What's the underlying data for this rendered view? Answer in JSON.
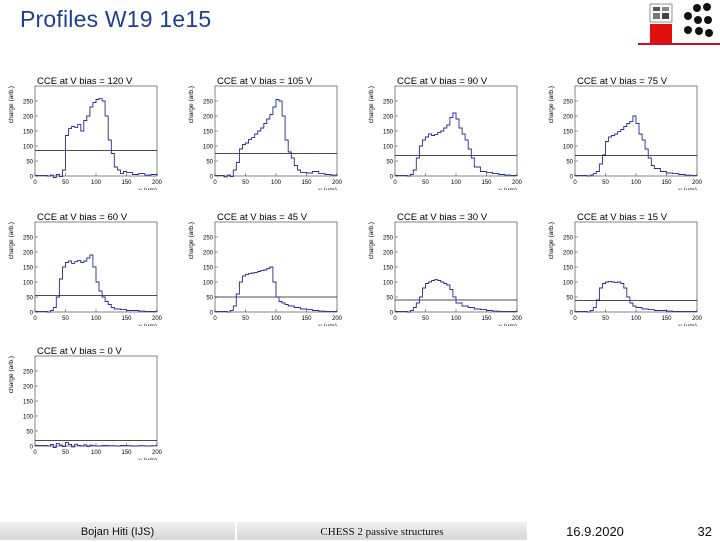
{
  "slide": {
    "title": "Profiles W19 1e15"
  },
  "footer": {
    "author": "Bojan Hiti (IJS)",
    "title": "CHESS 2 passive structures",
    "date": "16.9.2020",
    "page": "32"
  },
  "colors": {
    "title": "#1f3f8f",
    "curve": "#2a2a9a",
    "logo_red": "#e0100e"
  },
  "chart_data": [
    {
      "type": "line",
      "title": "CCE at V bias = 120 V",
      "xlabel": "y (µm)",
      "ylabel": "charge (arb.)",
      "xlim": [
        0,
        200
      ],
      "ylim": [
        0,
        300
      ],
      "xticks": [
        0,
        50,
        100,
        150,
        200
      ],
      "yticks": [
        0,
        50,
        100,
        150,
        200,
        250
      ],
      "threshold": 85,
      "series": [
        {
          "x": [
            0,
            20,
            25,
            30,
            35,
            40,
            45,
            50,
            55,
            60,
            65,
            70,
            75,
            80,
            85,
            90,
            95,
            100,
            105,
            110,
            115,
            120,
            125,
            130,
            135,
            140,
            145,
            150,
            160,
            170,
            180,
            190,
            200
          ],
          "y": [
            2,
            0,
            3,
            -5,
            5,
            -2,
            20,
            135,
            158,
            165,
            162,
            172,
            150,
            185,
            200,
            230,
            245,
            255,
            258,
            250,
            200,
            120,
            75,
            30,
            20,
            8,
            15,
            12,
            5,
            8,
            3,
            5,
            2
          ]
        }
      ]
    },
    {
      "type": "line",
      "title": "CCE at V bias = 105 V",
      "xlabel": "y (µm)",
      "ylabel": "charge (arb.)",
      "xlim": [
        0,
        200
      ],
      "ylim": [
        0,
        300
      ],
      "xticks": [
        0,
        50,
        100,
        150,
        200
      ],
      "yticks": [
        0,
        50,
        100,
        150,
        200,
        250
      ],
      "threshold": 75,
      "series": [
        {
          "x": [
            0,
            15,
            20,
            25,
            30,
            35,
            40,
            45,
            50,
            55,
            60,
            65,
            70,
            75,
            80,
            85,
            90,
            95,
            100,
            105,
            110,
            115,
            120,
            125,
            130,
            135,
            140,
            150,
            160,
            170,
            180,
            190,
            200
          ],
          "y": [
            2,
            -3,
            3,
            -2,
            20,
            45,
            90,
            105,
            110,
            122,
            128,
            140,
            150,
            160,
            175,
            190,
            205,
            230,
            255,
            250,
            200,
            120,
            80,
            60,
            35,
            20,
            12,
            10,
            15,
            8,
            5,
            3,
            2
          ]
        }
      ]
    },
    {
      "type": "line",
      "title": "CCE at V bias = 90 V",
      "xlabel": "y (µm)",
      "ylabel": "charge (arb.)",
      "xlim": [
        0,
        200
      ],
      "ylim": [
        0,
        300
      ],
      "xticks": [
        0,
        50,
        100,
        150,
        200
      ],
      "yticks": [
        0,
        50,
        100,
        150,
        200,
        250
      ],
      "threshold": 68,
      "series": [
        {
          "x": [
            0,
            20,
            25,
            30,
            35,
            40,
            45,
            50,
            55,
            60,
            65,
            70,
            75,
            80,
            85,
            90,
            95,
            100,
            105,
            110,
            115,
            120,
            125,
            130,
            140,
            150,
            160,
            170,
            180,
            190,
            200
          ],
          "y": [
            2,
            0,
            5,
            20,
            60,
            100,
            120,
            130,
            140,
            135,
            138,
            145,
            150,
            160,
            170,
            195,
            210,
            190,
            160,
            140,
            120,
            90,
            60,
            30,
            15,
            12,
            8,
            5,
            3,
            2,
            0
          ]
        }
      ]
    },
    {
      "type": "line",
      "title": "CCE at V bias = 75 V",
      "xlabel": "y (µm)",
      "ylabel": "charge (arb.)",
      "xlim": [
        0,
        200
      ],
      "ylim": [
        0,
        300
      ],
      "xticks": [
        0,
        50,
        100,
        150,
        200
      ],
      "yticks": [
        0,
        50,
        100,
        150,
        200,
        250
      ],
      "threshold": 68,
      "series": [
        {
          "x": [
            0,
            20,
            25,
            30,
            35,
            40,
            45,
            50,
            55,
            60,
            65,
            70,
            75,
            80,
            85,
            90,
            95,
            100,
            105,
            110,
            115,
            120,
            125,
            130,
            140,
            150,
            160,
            170,
            180,
            190,
            200
          ],
          "y": [
            2,
            0,
            3,
            8,
            15,
            40,
            70,
            115,
            130,
            135,
            140,
            148,
            155,
            165,
            175,
            182,
            200,
            175,
            140,
            120,
            90,
            60,
            35,
            25,
            15,
            10,
            8,
            5,
            3,
            2,
            2
          ]
        }
      ]
    },
    {
      "type": "line",
      "title": "CCE at V bias = 60 V",
      "xlabel": "y (µm)",
      "ylabel": "charge (arb.)",
      "xlim": [
        0,
        200
      ],
      "ylim": [
        0,
        300
      ],
      "xticks": [
        0,
        50,
        100,
        150,
        200
      ],
      "yticks": [
        0,
        50,
        100,
        150,
        200,
        250
      ],
      "threshold": 55,
      "series": [
        {
          "x": [
            0,
            20,
            25,
            30,
            35,
            40,
            45,
            50,
            55,
            60,
            65,
            70,
            75,
            80,
            85,
            90,
            95,
            100,
            105,
            110,
            115,
            120,
            125,
            130,
            140,
            150,
            160,
            170,
            180,
            190,
            200
          ],
          "y": [
            2,
            0,
            5,
            15,
            50,
            110,
            150,
            165,
            170,
            162,
            168,
            172,
            165,
            170,
            180,
            190,
            150,
            100,
            70,
            50,
            35,
            25,
            15,
            10,
            8,
            5,
            5,
            3,
            2,
            2,
            2
          ]
        }
      ]
    },
    {
      "type": "line",
      "title": "CCE at V bias = 45 V",
      "xlabel": "y (µm)",
      "ylabel": "charge (arb.)",
      "xlim": [
        0,
        200
      ],
      "ylim": [
        0,
        300
      ],
      "xticks": [
        0,
        50,
        100,
        150,
        200
      ],
      "yticks": [
        0,
        50,
        100,
        150,
        200,
        250
      ],
      "threshold": 50,
      "series": [
        {
          "x": [
            0,
            20,
            25,
            30,
            35,
            40,
            45,
            50,
            55,
            60,
            65,
            70,
            75,
            80,
            85,
            90,
            95,
            100,
            105,
            110,
            115,
            120,
            130,
            140,
            150,
            160,
            170,
            180,
            190,
            200
          ],
          "y": [
            2,
            0,
            5,
            20,
            60,
            100,
            120,
            125,
            128,
            130,
            132,
            135,
            138,
            140,
            145,
            150,
            100,
            50,
            35,
            30,
            25,
            20,
            15,
            10,
            8,
            5,
            3,
            2,
            2,
            2
          ]
        }
      ]
    },
    {
      "type": "line",
      "title": "CCE at V bias = 30 V",
      "xlabel": "y (µm)",
      "ylabel": "charge (arb.)",
      "xlim": [
        0,
        200
      ],
      "ylim": [
        0,
        300
      ],
      "xticks": [
        0,
        50,
        100,
        150,
        200
      ],
      "yticks": [
        0,
        50,
        100,
        150,
        200,
        250
      ],
      "threshold": 40,
      "series": [
        {
          "x": [
            0,
            20,
            25,
            30,
            35,
            40,
            45,
            50,
            55,
            60,
            65,
            70,
            75,
            80,
            85,
            90,
            95,
            100,
            110,
            120,
            130,
            140,
            150,
            160,
            170,
            180,
            190,
            200
          ],
          "y": [
            2,
            0,
            5,
            15,
            30,
            50,
            80,
            95,
            100,
            105,
            108,
            105,
            100,
            95,
            90,
            75,
            50,
            30,
            20,
            15,
            10,
            8,
            5,
            3,
            2,
            2,
            2,
            2
          ]
        }
      ]
    },
    {
      "type": "line",
      "title": "CCE at V bias = 15 V",
      "xlabel": "y (µm)",
      "ylabel": "charge (arb.)",
      "xlim": [
        0,
        200
      ],
      "ylim": [
        0,
        300
      ],
      "xticks": [
        0,
        50,
        100,
        150,
        200
      ],
      "yticks": [
        0,
        50,
        100,
        150,
        200,
        250
      ],
      "threshold": 38,
      "series": [
        {
          "x": [
            0,
            20,
            25,
            30,
            35,
            40,
            45,
            50,
            55,
            60,
            65,
            70,
            75,
            80,
            85,
            90,
            95,
            100,
            110,
            120,
            130,
            140,
            150,
            160,
            170,
            180,
            190,
            200
          ],
          "y": [
            2,
            0,
            5,
            15,
            40,
            80,
            95,
            100,
            102,
            100,
            98,
            100,
            95,
            80,
            50,
            30,
            20,
            15,
            10,
            8,
            5,
            5,
            3,
            2,
            2,
            2,
            2,
            2
          ]
        }
      ]
    },
    {
      "type": "line",
      "title": "CCE at V bias = 0 V",
      "xlabel": "y (µm)",
      "ylabel": "charge (arb.)",
      "xlim": [
        0,
        200
      ],
      "ylim": [
        0,
        300
      ],
      "xticks": [
        0,
        50,
        100,
        150,
        200
      ],
      "yticks": [
        0,
        50,
        100,
        150,
        200,
        250
      ],
      "threshold": 18,
      "series": [
        {
          "x": [
            0,
            20,
            25,
            30,
            35,
            40,
            45,
            50,
            55,
            60,
            65,
            70,
            75,
            80,
            85,
            90,
            95,
            100,
            110,
            120,
            130,
            140,
            150,
            160,
            170,
            180,
            190,
            200
          ],
          "y": [
            2,
            0,
            5,
            -5,
            8,
            3,
            -2,
            12,
            5,
            -3,
            6,
            2,
            0,
            4,
            -2,
            3,
            1,
            0,
            2,
            1,
            0,
            2,
            1,
            0,
            1,
            0,
            1,
            0
          ]
        }
      ]
    }
  ]
}
